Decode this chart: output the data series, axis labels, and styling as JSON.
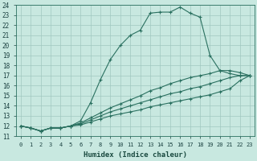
{
  "xlabel": "Humidex (Indice chaleur)",
  "xlim": [
    -0.5,
    23.5
  ],
  "ylim": [
    11,
    24
  ],
  "xticks": [
    0,
    1,
    2,
    3,
    4,
    5,
    6,
    7,
    8,
    9,
    10,
    11,
    12,
    13,
    14,
    15,
    16,
    17,
    18,
    19,
    20,
    21,
    22,
    23
  ],
  "yticks": [
    11,
    12,
    13,
    14,
    15,
    16,
    17,
    18,
    19,
    20,
    21,
    22,
    23,
    24
  ],
  "bg_color": "#c8e8e0",
  "line_color": "#2a7060",
  "grid_color": "#a0c8c0",
  "lines": [
    {
      "x": [
        0,
        1,
        2,
        3,
        4,
        5,
        6,
        7,
        8,
        9,
        10,
        11,
        12,
        13,
        14,
        15,
        16,
        17,
        18,
        19,
        20,
        21,
        22,
        23
      ],
      "y": [
        12.0,
        11.8,
        11.5,
        11.8,
        11.8,
        12.0,
        12.5,
        14.3,
        16.6,
        18.6,
        20.0,
        21.0,
        21.5,
        23.2,
        23.3,
        23.3,
        23.8,
        23.2,
        22.8,
        19.0,
        17.5,
        17.2,
        17.0,
        17.0
      ]
    },
    {
      "x": [
        0,
        1,
        2,
        3,
        4,
        5,
        6,
        7,
        8,
        9,
        10,
        11,
        12,
        13,
        14,
        15,
        16,
        17,
        18,
        19,
        20,
        21,
        22,
        23
      ],
      "y": [
        12.0,
        11.8,
        11.5,
        11.8,
        11.8,
        12.0,
        12.3,
        12.8,
        13.3,
        13.8,
        14.2,
        14.6,
        15.0,
        15.5,
        15.8,
        16.2,
        16.5,
        16.8,
        17.0,
        17.2,
        17.5,
        17.5,
        17.3,
        17.0
      ]
    },
    {
      "x": [
        0,
        1,
        2,
        3,
        4,
        5,
        6,
        7,
        8,
        9,
        10,
        11,
        12,
        13,
        14,
        15,
        16,
        17,
        18,
        19,
        20,
        21,
        22,
        23
      ],
      "y": [
        12.0,
        11.8,
        11.5,
        11.8,
        11.8,
        12.0,
        12.2,
        12.6,
        13.0,
        13.4,
        13.7,
        14.0,
        14.3,
        14.6,
        14.9,
        15.2,
        15.4,
        15.7,
        15.9,
        16.2,
        16.5,
        16.8,
        17.0,
        17.0
      ]
    },
    {
      "x": [
        0,
        1,
        2,
        3,
        4,
        5,
        6,
        7,
        8,
        9,
        10,
        11,
        12,
        13,
        14,
        15,
        16,
        17,
        18,
        19,
        20,
        21,
        22,
        23
      ],
      "y": [
        12.0,
        11.8,
        11.5,
        11.8,
        11.8,
        12.0,
        12.1,
        12.4,
        12.7,
        13.0,
        13.2,
        13.4,
        13.6,
        13.9,
        14.1,
        14.3,
        14.5,
        14.7,
        14.9,
        15.1,
        15.4,
        15.7,
        16.5,
        17.0
      ]
    }
  ]
}
